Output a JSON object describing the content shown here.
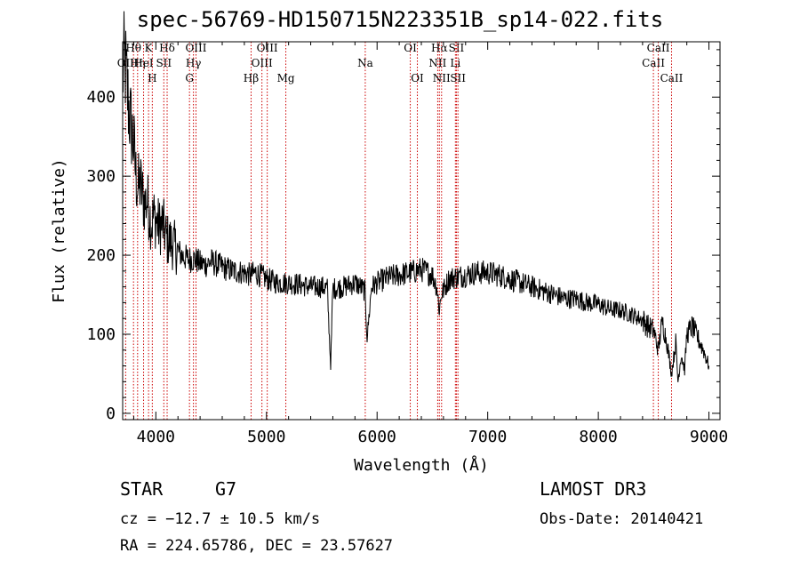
{
  "chart_data": {
    "type": "line",
    "title": "spec-56769-HD150715N223351B_sp14-022.fits",
    "xlabel": "Wavelength (Å)",
    "ylabel": "Flux (relative)",
    "xlim": [
      3700,
      9100
    ],
    "ylim": [
      -8,
      470
    ],
    "xticks": [
      4000,
      5000,
      6000,
      7000,
      8000,
      9000
    ],
    "yticks": [
      0,
      100,
      200,
      300,
      400
    ],
    "series": [
      {
        "name": "flux",
        "x": [
          3700,
          3720,
          3740,
          3760,
          3780,
          3800,
          3820,
          3840,
          3860,
          3880,
          3900,
          3920,
          3940,
          3960,
          3980,
          4000,
          4030,
          4060,
          4100,
          4150,
          4200,
          4250,
          4300,
          4350,
          4400,
          4450,
          4500,
          4600,
          4700,
          4800,
          4850,
          4900,
          5000,
          5100,
          5200,
          5300,
          5400,
          5500,
          5550,
          5580,
          5600,
          5700,
          5800,
          5850,
          5890,
          5910,
          5950,
          6000,
          6100,
          6200,
          6300,
          6400,
          6500,
          6540,
          6563,
          6580,
          6650,
          6700,
          6800,
          6900,
          7000,
          7100,
          7200,
          7300,
          7400,
          7500,
          7600,
          7700,
          7800,
          7900,
          8000,
          8100,
          8200,
          8300,
          8400,
          8450,
          8500,
          8542,
          8560,
          8580,
          8620,
          8662,
          8700,
          8720,
          8750,
          8780,
          8800,
          8850,
          8900,
          8950,
          9000
        ],
        "y": [
          430,
          445,
          410,
          380,
          360,
          340,
          300,
          285,
          290,
          275,
          265,
          270,
          255,
          240,
          250,
          245,
          235,
          240,
          220,
          215,
          205,
          198,
          195,
          195,
          190,
          188,
          192,
          185,
          180,
          178,
          175,
          178,
          170,
          165,
          165,
          163,
          160,
          160,
          158,
          60,
          158,
          160,
          165,
          160,
          155,
          95,
          160,
          165,
          172,
          175,
          178,
          182,
          175,
          160,
          130,
          150,
          170,
          172,
          175,
          178,
          178,
          175,
          170,
          165,
          160,
          155,
          150,
          145,
          145,
          140,
          138,
          132,
          130,
          125,
          118,
          110,
          105,
          80,
          100,
          115,
          90,
          50,
          90,
          40,
          75,
          55,
          100,
          110,
          95,
          80,
          60
        ]
      }
    ],
    "lines": [
      {
        "label": "OII",
        "x": 3727,
        "row": 2
      },
      {
        "label": "Hθ",
        "x": 3798,
        "row": 1
      },
      {
        "label": "Hη",
        "x": 3835,
        "row": 2
      },
      {
        "label": "HeI",
        "x": 3889,
        "row": 2
      },
      {
        "label": "K",
        "x": 3934,
        "row": 1
      },
      {
        "label": "H",
        "x": 3968,
        "row": 3
      },
      {
        "label": "SII",
        "x": 4072,
        "row": 2
      },
      {
        "label": "Hδ",
        "x": 4102,
        "row": 1
      },
      {
        "label": "G",
        "x": 4304,
        "row": 3
      },
      {
        "label": "Hγ",
        "x": 4340,
        "row": 2
      },
      {
        "label": "OIII",
        "x": 4363,
        "row": 1
      },
      {
        "label": "Hβ",
        "x": 4861,
        "row": 3
      },
      {
        "label": "OIII",
        "x": 4959,
        "row": 2
      },
      {
        "label": "OIII",
        "x": 5007,
        "row": 1
      },
      {
        "label": "Mg",
        "x": 5175,
        "row": 3
      },
      {
        "label": "Na",
        "x": 5893,
        "row": 2
      },
      {
        "label": "OI",
        "x": 6300,
        "row": 1
      },
      {
        "label": "OI",
        "x": 6364,
        "row": 3
      },
      {
        "label": "NII",
        "x": 6548,
        "row": 2
      },
      {
        "label": "Hα",
        "x": 6563,
        "row": 1
      },
      {
        "label": "NII",
        "x": 6583,
        "row": 3
      },
      {
        "label": "SII",
        "x": 6717,
        "row": 1
      },
      {
        "label": "Li",
        "x": 6708,
        "row": 2
      },
      {
        "label": "SII",
        "x": 6731,
        "row": 3
      },
      {
        "label": "CaII",
        "x": 8498,
        "row": 2
      },
      {
        "label": "CaII",
        "x": 8542,
        "row": 1
      },
      {
        "label": "CaII",
        "x": 8662,
        "row": 3
      }
    ]
  },
  "info": {
    "class": "STAR",
    "subclass": "G7",
    "survey": "LAMOST DR3",
    "cz": "cz = −12.7 ± 10.5 km/s",
    "obs_date": "Obs-Date: 20140421",
    "radec": "RA = 224.65786, DEC =  23.57627"
  }
}
